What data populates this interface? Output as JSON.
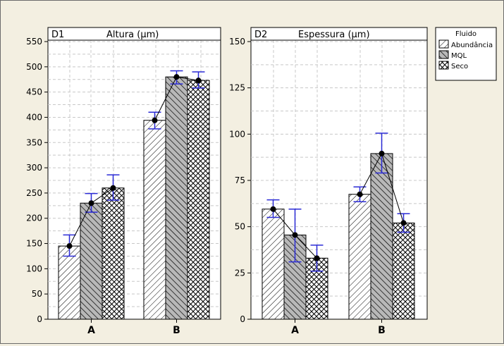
{
  "legend": {
    "title": "Fluido",
    "items": [
      "Abundância",
      "MQL",
      "Seco"
    ]
  },
  "chart_data": [
    {
      "type": "bar",
      "panel": "D1",
      "title": "Altura (µm)",
      "categories": [
        "A",
        "B"
      ],
      "series": [
        {
          "name": "Abundância",
          "values": [
            145,
            394
          ],
          "err_low": [
            125,
            377
          ],
          "err_high": [
            167,
            410
          ]
        },
        {
          "name": "MQL",
          "values": [
            230,
            480
          ],
          "err_low": [
            212,
            466
          ],
          "err_high": [
            249,
            492
          ]
        },
        {
          "name": "Seco",
          "values": [
            260,
            473
          ],
          "err_low": [
            236,
            458
          ],
          "err_high": [
            286,
            490
          ]
        }
      ],
      "y_ticks": [
        0,
        50,
        100,
        150,
        200,
        250,
        300,
        350,
        400,
        450,
        500,
        550
      ],
      "ylim": [
        0,
        550
      ],
      "grid": true,
      "connect_means": true
    },
    {
      "type": "bar",
      "panel": "D2",
      "title": "Espessura (µm)",
      "categories": [
        "A",
        "B"
      ],
      "series": [
        {
          "name": "Abundância",
          "values": [
            59.5,
            67.5
          ],
          "err_low": [
            55,
            63.5
          ],
          "err_high": [
            64.5,
            71.5
          ]
        },
        {
          "name": "MQL",
          "values": [
            45.5,
            89.5
          ],
          "err_low": [
            31,
            79
          ],
          "err_high": [
            59.5,
            100.5
          ]
        },
        {
          "name": "Seco",
          "values": [
            33,
            52
          ],
          "err_low": [
            26,
            47
          ],
          "err_high": [
            40,
            57
          ]
        }
      ],
      "y_ticks": [
        0,
        25,
        50,
        75,
        100,
        125,
        150
      ],
      "ylim": [
        0,
        150
      ],
      "grid": true,
      "connect_means": true
    }
  ],
  "style": {
    "background": "#f3efe1",
    "plot_background": "#ffffff",
    "error_bar_color": "#2b2bd6",
    "grid_color": "#c8c8c8",
    "bar_outline": "#000000",
    "patterns": [
      "diagonal-hatch",
      "gray-diagonal-hatch",
      "crosshatch"
    ]
  }
}
